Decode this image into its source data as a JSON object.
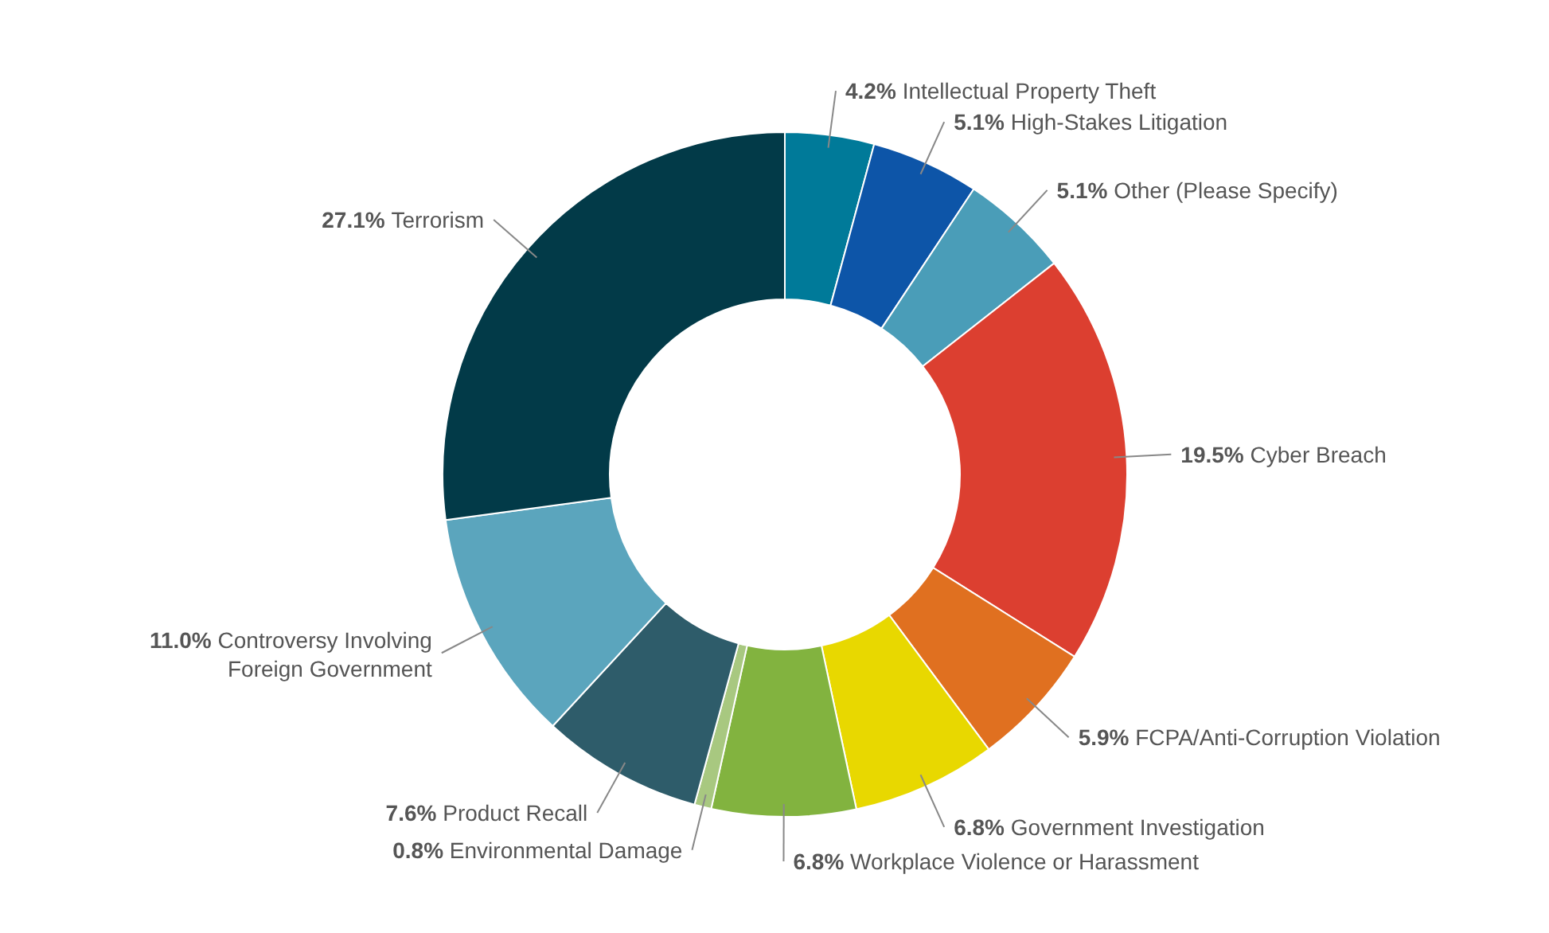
{
  "chart_data": {
    "type": "donut",
    "categories": [
      "Intellectual Property Theft",
      "High-Stakes Litigation",
      "Other (Please Specify)",
      "Cyber Breach",
      "FCPA/Anti-Corruption Violation",
      "Government Investigation",
      "Workplace Violence or Harassment",
      "Environmental Damage",
      "Product Recall",
      "Controversy Involving Foreign Government",
      "Terrorism"
    ],
    "values": [
      4.2,
      5.1,
      5.1,
      19.5,
      5.9,
      6.8,
      6.8,
      0.8,
      7.6,
      11.0,
      27.1
    ],
    "value_labels": [
      "4.2%",
      "5.1%",
      "5.1%",
      "19.5%",
      "5.9%",
      "6.8%",
      "6.8%",
      "0.8%",
      "7.6%",
      "11.0%",
      "27.1%"
    ],
    "colors": [
      "#007a99",
      "#0d55a8",
      "#4a9db8",
      "#dc3f30",
      "#e07020",
      "#e8d800",
      "#82b33f",
      "#a8c880",
      "#2e5c6a",
      "#5ba5bd",
      "#023a48"
    ]
  }
}
